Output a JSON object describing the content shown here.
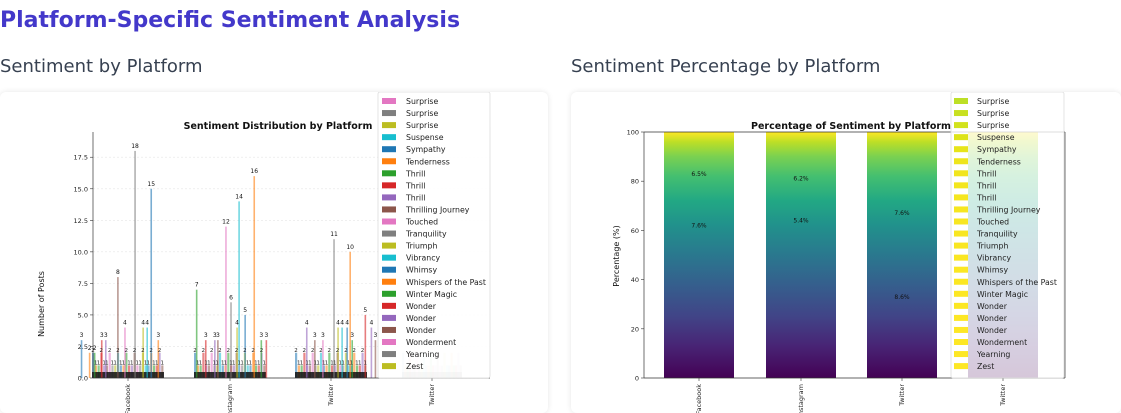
{
  "page": {
    "title": "Platform-Specific Sentiment Analysis",
    "left_heading": "Sentiment by Platform",
    "right_heading": "Sentiment Percentage by Platform"
  },
  "legend_entries": [
    "Surprise",
    "Surprise",
    "Surprise",
    "Suspense",
    "Sympathy",
    "Tenderness",
    "Thrill",
    "Thrill",
    "Thrill",
    "Thrilling Journey",
    "Touched",
    "Tranquility",
    "Triumph",
    "Vibrancy",
    "Whimsy",
    "Whispers of the Past",
    "Winter Magic",
    "Wonder",
    "Wonder",
    "Wonder",
    "Wonderment",
    "Yearning",
    "Zest"
  ],
  "legend_colors_left": [
    "#e377c2",
    "#7f7f7f",
    "#bcbd22",
    "#17becf",
    "#1f77b4",
    "#ff7f0e",
    "#2ca02c",
    "#d62728",
    "#9467bd",
    "#8c564b",
    "#e377c2",
    "#7f7f7f",
    "#bcbd22",
    "#17becf",
    "#1f77b4",
    "#ff7f0e",
    "#2ca02c",
    "#d62728",
    "#9467bd",
    "#8c564b",
    "#e377c2",
    "#7f7f7f",
    "#bcbd22"
  ],
  "legend_colors_right": [
    "#bddf26",
    "#c8e020",
    "#d2e21b",
    "#dde318",
    "#e7e419",
    "#eee51c",
    "#f1e51d",
    "#f3e61e",
    "#f5e61f",
    "#f6e620",
    "#f7e621",
    "#f8e621",
    "#f9e622",
    "#fae622",
    "#fbe723",
    "#fbe723",
    "#fce724",
    "#fce724",
    "#fde725",
    "#fde725",
    "#fde725",
    "#fde725",
    "#fde725"
  ],
  "chart_data": [
    {
      "type": "bar",
      "title": "Sentiment Distribution by Platform",
      "xlabel": "",
      "ylabel": "Number of Posts",
      "categories": [
        "Facebook",
        "Instagram",
        "Twitter",
        "Twitter"
      ],
      "yticks": [
        "0.0",
        "2.5",
        "5.0",
        "7.5",
        "10.0",
        "12.5",
        "15.0",
        "17.5"
      ],
      "ylim": [
        0,
        19.5
      ],
      "labeled_bars": [
        {
          "platform": 0,
          "offset": -0.46,
          "value": 3
        },
        {
          "platform": 0,
          "offset": -0.38,
          "value": 2
        },
        {
          "platform": 0,
          "offset": -0.33,
          "value": 2
        },
        {
          "platform": 0,
          "offset": -0.26,
          "value": 3
        },
        {
          "platform": 0,
          "offset": -0.22,
          "value": 3
        },
        {
          "platform": 0,
          "offset": -0.1,
          "value": 8
        },
        {
          "platform": 0,
          "offset": -0.03,
          "value": 4
        },
        {
          "platform": 0,
          "offset": 0.07,
          "value": 18
        },
        {
          "platform": 0,
          "offset": 0.15,
          "value": 4
        },
        {
          "platform": 0,
          "offset": 0.19,
          "value": 4
        },
        {
          "platform": 0,
          "offset": 0.23,
          "value": 15
        },
        {
          "platform": 0,
          "offset": 0.3,
          "value": 3
        },
        {
          "platform": 1,
          "offset": -0.33,
          "value": 7
        },
        {
          "platform": 1,
          "offset": -0.24,
          "value": 3
        },
        {
          "platform": 1,
          "offset": -0.15,
          "value": 3
        },
        {
          "platform": 1,
          "offset": -0.12,
          "value": 3
        },
        {
          "platform": 1,
          "offset": -0.04,
          "value": 12
        },
        {
          "platform": 1,
          "offset": 0.01,
          "value": 6
        },
        {
          "platform": 1,
          "offset": 0.07,
          "value": 4
        },
        {
          "platform": 1,
          "offset": 0.09,
          "value": 14
        },
        {
          "platform": 1,
          "offset": 0.15,
          "value": 5
        },
        {
          "platform": 1,
          "offset": 0.24,
          "value": 16
        },
        {
          "platform": 1,
          "offset": 0.31,
          "value": 3
        },
        {
          "platform": 1,
          "offset": 0.36,
          "value": 3
        },
        {
          "platform": 2,
          "offset": -0.24,
          "value": 4
        },
        {
          "platform": 2,
          "offset": -0.16,
          "value": 3
        },
        {
          "platform": 2,
          "offset": -0.08,
          "value": 3
        },
        {
          "platform": 2,
          "offset": 0.03,
          "value": 11
        },
        {
          "platform": 2,
          "offset": 0.07,
          "value": 4
        },
        {
          "platform": 2,
          "offset": 0.11,
          "value": 4
        },
        {
          "platform": 2,
          "offset": 0.16,
          "value": 4
        },
        {
          "platform": 2,
          "offset": 0.19,
          "value": 10
        },
        {
          "platform": 2,
          "offset": 0.21,
          "value": 3
        },
        {
          "platform": 2,
          "offset": 0.34,
          "value": 5
        },
        {
          "platform": 2,
          "offset": 0.4,
          "value": 4
        },
        {
          "platform": 2,
          "offset": 0.44,
          "value": 3
        }
      ],
      "small_values": {
        "2": "2.5",
        "1": "1.5"
      }
    },
    {
      "type": "bar",
      "stacked": true,
      "title": "Percentage of Sentiment by Platform",
      "xlabel": "",
      "ylabel": "Percentage (%)",
      "categories": [
        "Facebook",
        "Instagram",
        "Twitter",
        "Twitter"
      ],
      "yticks": [
        "0",
        "20",
        "40",
        "60",
        "80",
        "100"
      ],
      "ylim": [
        0,
        100
      ],
      "segment_labels": [
        {
          "platform": 0,
          "y": 83,
          "label": "6.5%"
        },
        {
          "platform": 0,
          "y": 62,
          "label": "7.6%"
        },
        {
          "platform": 1,
          "y": 81,
          "label": "6.2%"
        },
        {
          "platform": 1,
          "y": 64,
          "label": "5.4%"
        },
        {
          "platform": 2,
          "y": 67,
          "label": "7.6%"
        },
        {
          "platform": 2,
          "y": 33,
          "label": "8.6%"
        }
      ]
    }
  ]
}
